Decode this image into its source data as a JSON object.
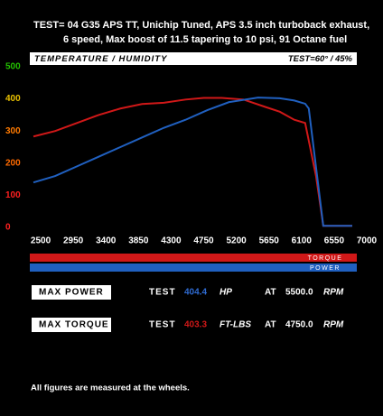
{
  "header": {
    "line1": "TEST= 04 G35 APS TT, Unichip Tuned, APS 3.5 inch turboback exhaust,",
    "line2": "6 speed, Max boost of 11.5 tapering to 10 psi, 91 Octane fuel"
  },
  "chart_data": {
    "type": "line",
    "title": "TEMPERATURE / HUMIDITY",
    "subtitle": "TEST=60° / 45%",
    "xlim": [
      2400,
      7000
    ],
    "ylim": [
      0,
      500
    ],
    "xticks": [
      2500,
      2950,
      3400,
      3850,
      4300,
      4750,
      5200,
      5650,
      6100,
      6550,
      7000
    ],
    "yticks": [
      0,
      100,
      200,
      300,
      400,
      500
    ],
    "ytick_colors": [
      "#ff2020",
      "#ff2020",
      "#ff6a00",
      "#ff7a00",
      "#e8c000",
      "#22c000"
    ],
    "grid": false,
    "series": [
      {
        "name": "TORQUE",
        "color": "#d01818",
        "x": [
          2400,
          2700,
          3000,
          3300,
          3600,
          3900,
          4200,
          4500,
          4750,
          5000,
          5300,
          5600,
          5800,
          6000,
          6150,
          6300,
          6400,
          6800
        ],
        "values": [
          283,
          300,
          325,
          350,
          370,
          384,
          388,
          398,
          403,
          403,
          398,
          375,
          360,
          335,
          325,
          160,
          5,
          5
        ]
      },
      {
        "name": "POWER",
        "color": "#2060c0",
        "x": [
          2400,
          2700,
          3000,
          3300,
          3600,
          3900,
          4200,
          4500,
          4800,
          5100,
          5500,
          5800,
          6000,
          6150,
          6200,
          6400,
          6800
        ],
        "values": [
          140,
          160,
          190,
          220,
          250,
          280,
          310,
          335,
          365,
          390,
          404,
          402,
          395,
          385,
          370,
          5,
          5
        ]
      }
    ]
  },
  "summary": {
    "rows": [
      {
        "label": "MAX POWER",
        "test": "TEST",
        "value": "404.4",
        "unit": "HP",
        "at": "AT",
        "rpm": "5500.0",
        "rpm_unit": "RPM"
      },
      {
        "label": "MAX TORQUE",
        "test": "TEST",
        "value": "403.3",
        "unit": "FT-LBS",
        "at": "AT",
        "rpm": "4750.0",
        "rpm_unit": "RPM"
      }
    ]
  },
  "footer": "All figures are measured at the wheels."
}
